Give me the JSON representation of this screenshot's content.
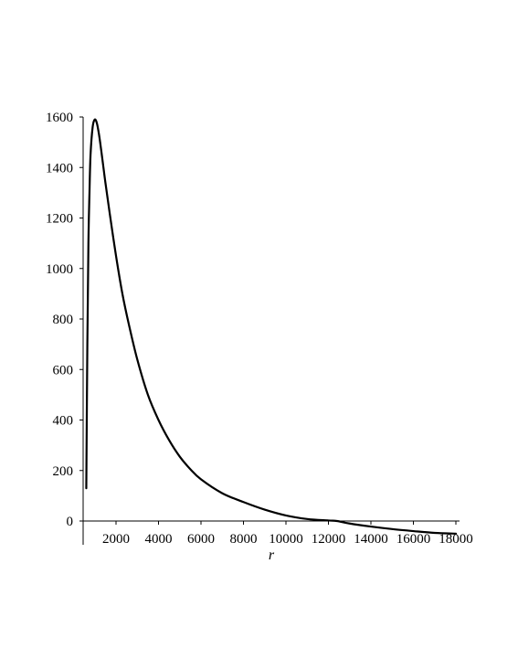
{
  "chart_data": {
    "type": "line",
    "title": "",
    "xlabel": "r",
    "ylabel": "",
    "xlim": [
      0,
      18000
    ],
    "ylim": [
      -70,
      1600
    ],
    "x_ticks": [
      2000,
      4000,
      6000,
      8000,
      10000,
      12000,
      14000,
      16000,
      18000
    ],
    "x_tick_labels": [
      "2000",
      "4000",
      "6000",
      "8000",
      "10000",
      "12000",
      "14000",
      "16000",
      "18000"
    ],
    "y_ticks": [
      0,
      200,
      400,
      600,
      800,
      1000,
      1200,
      1400,
      1600
    ],
    "y_tick_labels": [
      "0",
      "200",
      "400",
      "600",
      "800",
      "1000",
      "1200",
      "1400",
      "1600"
    ],
    "grid": false,
    "legend": "none",
    "series": [
      {
        "color": "#000000",
        "x": [
          600,
          650,
          700,
          750,
          800,
          900,
          1000,
          1100,
          1200,
          1300,
          1400,
          1500,
          1700,
          2000,
          2300,
          2600,
          3000,
          3500,
          4000,
          4500,
          5000,
          5500,
          6000,
          7000,
          8000,
          9000,
          10000,
          11000,
          12000,
          12400,
          13000,
          14000,
          15000,
          16000,
          17000,
          18000
        ],
        "y": [
          130,
          700,
          1100,
          1300,
          1450,
          1560,
          1590,
          1575,
          1530,
          1470,
          1405,
          1340,
          1220,
          1050,
          900,
          780,
          640,
          500,
          400,
          320,
          255,
          205,
          165,
          110,
          75,
          45,
          22,
          8,
          2,
          0,
          -10,
          -22,
          -32,
          -40,
          -47,
          -50
        ]
      }
    ]
  }
}
